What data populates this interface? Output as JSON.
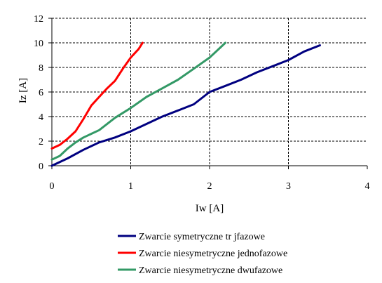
{
  "chart_data": {
    "type": "line",
    "title": "",
    "xlabel": "Iw [A]",
    "ylabel": "Iz [A]",
    "xlim": [
      0,
      4
    ],
    "ylim": [
      0,
      12
    ],
    "x_ticks": [
      0,
      1,
      2,
      3,
      4
    ],
    "y_ticks": [
      0,
      2,
      4,
      6,
      8,
      10,
      12
    ],
    "grid": true,
    "legend_position": "bottom",
    "series": [
      {
        "name": "Zwarcie symetryczne tr  jfazowe",
        "color": "#000080",
        "points": [
          [
            0,
            0
          ],
          [
            0.2,
            0.6
          ],
          [
            0.4,
            1.3
          ],
          [
            0.6,
            1.9
          ],
          [
            0.8,
            2.3
          ],
          [
            1.0,
            2.8
          ],
          [
            1.2,
            3.4
          ],
          [
            1.4,
            4.0
          ],
          [
            1.6,
            4.5
          ],
          [
            1.8,
            5.0
          ],
          [
            2.0,
            6.0
          ],
          [
            2.2,
            6.5
          ],
          [
            2.4,
            7.0
          ],
          [
            2.6,
            7.6
          ],
          [
            2.8,
            8.1
          ],
          [
            3.0,
            8.6
          ],
          [
            3.2,
            9.3
          ],
          [
            3.4,
            9.8
          ]
        ]
      },
      {
        "name": "Zwarcie niesymetryczne jednofazowe",
        "color": "#ff0000",
        "points": [
          [
            0,
            1.4
          ],
          [
            0.1,
            1.7
          ],
          [
            0.2,
            2.2
          ],
          [
            0.3,
            2.8
          ],
          [
            0.4,
            3.8
          ],
          [
            0.5,
            4.9
          ],
          [
            0.6,
            5.6
          ],
          [
            0.7,
            6.3
          ],
          [
            0.8,
            6.9
          ],
          [
            0.9,
            7.9
          ],
          [
            1.0,
            8.8
          ],
          [
            1.1,
            9.5
          ],
          [
            1.15,
            10.0
          ]
        ]
      },
      {
        "name": "Zwarcie niesymetryczne dwufazowe",
        "color": "#339966",
        "points": [
          [
            0,
            0.5
          ],
          [
            0.1,
            0.8
          ],
          [
            0.2,
            1.4
          ],
          [
            0.3,
            1.9
          ],
          [
            0.4,
            2.3
          ],
          [
            0.6,
            2.9
          ],
          [
            0.8,
            3.9
          ],
          [
            1.0,
            4.7
          ],
          [
            1.2,
            5.6
          ],
          [
            1.4,
            6.3
          ],
          [
            1.6,
            7.0
          ],
          [
            1.8,
            7.9
          ],
          [
            2.0,
            8.8
          ],
          [
            2.1,
            9.4
          ],
          [
            2.2,
            10.0
          ]
        ]
      }
    ]
  }
}
